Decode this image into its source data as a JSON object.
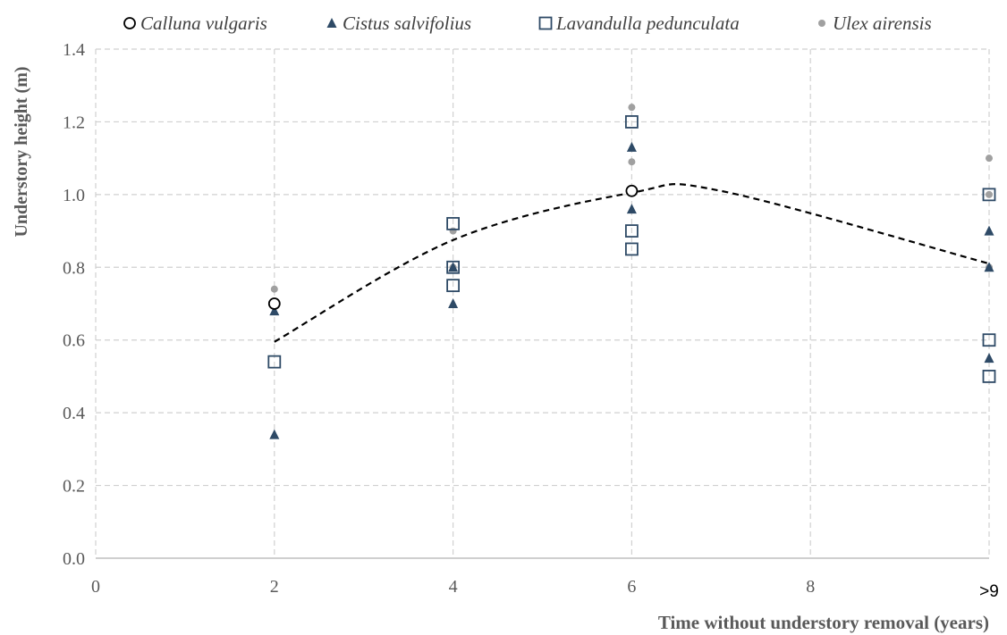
{
  "chart_data": {
    "type": "scatter",
    "title": "",
    "xlabel": "Time without understory removal (years)",
    "ylabel": "Understory height (m)",
    "xlim": [
      0,
      10
    ],
    "ylim": [
      0,
      1.4
    ],
    "grid": true,
    "legend_position": "top",
    "x_ticks": [
      {
        "value": 0,
        "label": "0"
      },
      {
        "value": 2,
        "label": "2"
      },
      {
        "value": 4,
        "label": "4"
      },
      {
        "value": 6,
        "label": "6"
      },
      {
        "value": 8,
        "label": "8"
      },
      {
        "value": 10,
        "label": ">9"
      }
    ],
    "y_ticks": [
      {
        "value": 0,
        "label": "0.0"
      },
      {
        "value": 0.2,
        "label": "0.2"
      },
      {
        "value": 0.4,
        "label": "0.4"
      },
      {
        "value": 0.6,
        "label": "0.6"
      },
      {
        "value": 0.8,
        "label": "0.8"
      },
      {
        "value": 1.0,
        "label": "1.0"
      },
      {
        "value": 1.2,
        "label": "1.2"
      },
      {
        "value": 1.4,
        "label": "1.4"
      }
    ],
    "series": [
      {
        "name": "Calluna vulgaris",
        "marker": "open-circle",
        "color": "#000000",
        "points": [
          {
            "x": 2,
            "y": 0.7
          },
          {
            "x": 6,
            "y": 1.01
          }
        ]
      },
      {
        "name": "Cistus salvifolius",
        "marker": "filled-triangle",
        "color": "#2e4a66",
        "points": [
          {
            "x": 2,
            "y": 0.68
          },
          {
            "x": 2,
            "y": 0.34
          },
          {
            "x": 4,
            "y": 0.8
          },
          {
            "x": 4,
            "y": 0.7
          },
          {
            "x": 6,
            "y": 1.13
          },
          {
            "x": 6,
            "y": 0.96
          },
          {
            "x": 10,
            "y": 0.9
          },
          {
            "x": 10,
            "y": 0.8
          },
          {
            "x": 10,
            "y": 0.55
          }
        ]
      },
      {
        "name": "Lavandulla pedunculata",
        "marker": "open-square",
        "color": "#2e4a66",
        "points": [
          {
            "x": 2,
            "y": 0.54
          },
          {
            "x": 4,
            "y": 0.92
          },
          {
            "x": 4,
            "y": 0.8
          },
          {
            "x": 4,
            "y": 0.75
          },
          {
            "x": 6,
            "y": 1.2
          },
          {
            "x": 6,
            "y": 0.9
          },
          {
            "x": 6,
            "y": 0.85
          },
          {
            "x": 10,
            "y": 1.0
          },
          {
            "x": 10,
            "y": 0.6
          },
          {
            "x": 10,
            "y": 0.5
          }
        ]
      },
      {
        "name": "Ulex airensis",
        "marker": "filled-circle",
        "color": "#a0a0a0",
        "points": [
          {
            "x": 2,
            "y": 0.74
          },
          {
            "x": 4,
            "y": 0.9
          },
          {
            "x": 4,
            "y": 0.8
          },
          {
            "x": 6,
            "y": 1.24
          },
          {
            "x": 6,
            "y": 1.09
          },
          {
            "x": 10,
            "y": 1.1
          },
          {
            "x": 10,
            "y": 1.0
          },
          {
            "x": 10,
            "y": 0.8
          }
        ]
      }
    ],
    "trendline": {
      "style": "dashed",
      "color": "#000000",
      "kind": "quadratic",
      "x_range": [
        2,
        10
      ],
      "points": [
        {
          "x": 2,
          "y": 0.595
        },
        {
          "x": 4,
          "y": 0.875
        },
        {
          "x": 6,
          "y": 1.005
        },
        {
          "x": 7,
          "y": 1.01
        },
        {
          "x": 10,
          "y": 0.81
        }
      ]
    }
  }
}
